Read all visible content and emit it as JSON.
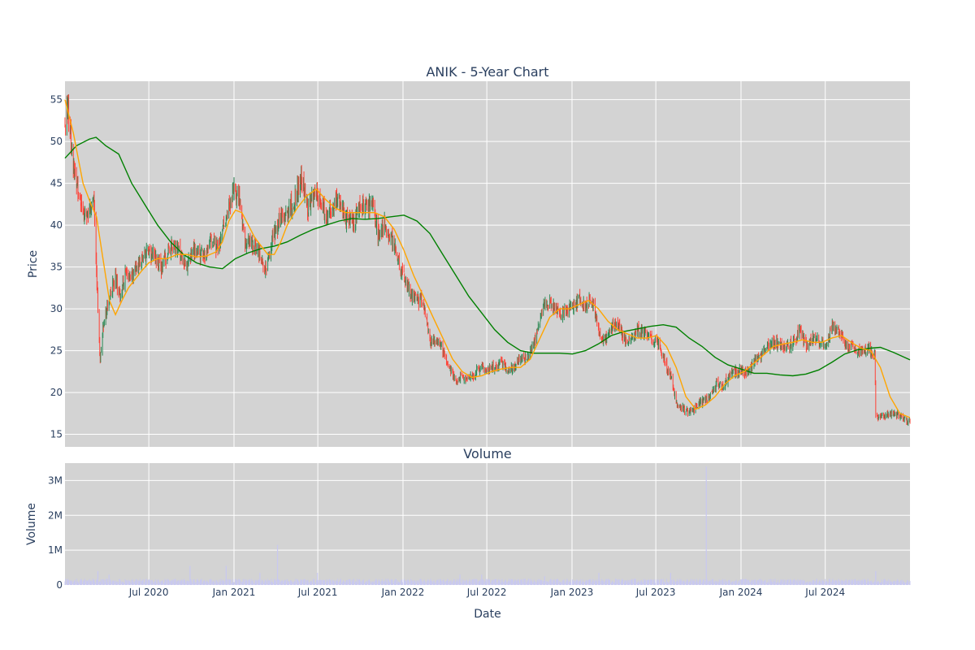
{
  "chart_data": {
    "type": "candlestick",
    "title": "ANIK - 5-Year Chart",
    "colors": {
      "plot_bg": "#d3d3d3",
      "gridline": "#ffffff",
      "increasing": "#2e8b57",
      "decreasing": "#ff4136",
      "ma_short": "#ffa500",
      "ma_long": "#008000",
      "volume_bar": "#c8c8f0"
    },
    "price_panel": {
      "ylabel": "Price",
      "ylim": [
        13.5,
        57.2
      ],
      "yticks": [
        15,
        20,
        25,
        30,
        35,
        40,
        45,
        50,
        55
      ],
      "series": [
        {
          "name": "",
          "color": "ma_short"
        },
        {
          "name": "",
          "color": "ma_long"
        }
      ]
    },
    "volume_panel": {
      "title": "Volume",
      "ylabel": "Volume",
      "ylim": [
        0,
        3500000
      ],
      "yticks": [
        0,
        1000000,
        2000000,
        3000000
      ],
      "ytick_labels": [
        "0",
        "1M",
        "2M",
        "3M"
      ]
    },
    "xaxis": {
      "xlabel": "Date",
      "range": [
        "2020-01-02",
        "2024-12-31"
      ],
      "ticks": [
        "2020-07-01",
        "2021-01-01",
        "2021-07-01",
        "2022-01-01",
        "2022-07-01",
        "2023-01-01",
        "2023-07-01",
        "2024-01-01",
        "2024-07-01"
      ],
      "tick_labels": [
        "Jul 2020",
        "Jan 2021",
        "Jul 2021",
        "Jan 2022",
        "Jul 2022",
        "Jan 2023",
        "Jul 2023",
        "Jan 2024",
        "Jul 2024"
      ]
    },
    "close_path": [
      [
        "2020-01-02",
        52.5
      ],
      [
        "2020-01-08",
        54.5
      ],
      [
        "2020-01-20",
        47
      ],
      [
        "2020-02-03",
        43
      ],
      [
        "2020-02-13",
        41
      ],
      [
        "2020-02-27",
        42
      ],
      [
        "2020-03-05",
        43
      ],
      [
        "2020-03-13",
        30
      ],
      [
        "2020-03-18",
        24
      ],
      [
        "2020-03-24",
        28
      ],
      [
        "2020-04-06",
        31
      ],
      [
        "2020-04-20",
        34
      ],
      [
        "2020-04-29",
        31.5
      ],
      [
        "2020-05-11",
        34
      ],
      [
        "2020-05-25",
        34
      ],
      [
        "2020-06-08",
        35
      ],
      [
        "2020-06-29",
        37
      ],
      [
        "2020-07-13",
        36
      ],
      [
        "2020-07-29",
        35
      ],
      [
        "2020-08-12",
        37
      ],
      [
        "2020-09-01",
        37.5
      ],
      [
        "2020-09-21",
        35
      ],
      [
        "2020-10-05",
        37
      ],
      [
        "2020-10-28",
        36
      ],
      [
        "2020-11-13",
        38
      ],
      [
        "2020-11-30",
        37.5
      ],
      [
        "2020-12-15",
        41
      ],
      [
        "2020-12-31",
        44
      ],
      [
        "2021-01-11",
        43.5
      ],
      [
        "2021-01-25",
        38
      ],
      [
        "2021-02-08",
        38
      ],
      [
        "2021-02-25",
        36.5
      ],
      [
        "2021-03-11",
        35
      ],
      [
        "2021-03-25",
        38
      ],
      [
        "2021-04-12",
        41
      ],
      [
        "2021-04-28",
        41.5
      ],
      [
        "2021-05-12",
        43
      ],
      [
        "2021-05-26",
        46
      ],
      [
        "2021-06-09",
        42
      ],
      [
        "2021-06-23",
        44
      ],
      [
        "2021-07-06",
        43
      ],
      [
        "2021-07-20",
        41
      ],
      [
        "2021-08-02",
        42
      ],
      [
        "2021-08-16",
        43
      ],
      [
        "2021-08-30",
        41
      ],
      [
        "2021-09-14",
        40
      ],
      [
        "2021-09-28",
        42
      ],
      [
        "2021-10-12",
        42
      ],
      [
        "2021-10-27",
        42.5
      ],
      [
        "2021-11-08",
        39
      ],
      [
        "2021-11-22",
        40
      ],
      [
        "2021-12-06",
        38.5
      ],
      [
        "2021-12-20",
        36
      ],
      [
        "2022-01-03",
        34
      ],
      [
        "2022-01-17",
        32
      ],
      [
        "2022-01-31",
        31
      ],
      [
        "2022-02-14",
        31
      ],
      [
        "2022-02-28",
        26
      ],
      [
        "2022-03-14",
        26.5
      ],
      [
        "2022-03-28",
        25
      ],
      [
        "2022-04-11",
        23
      ],
      [
        "2022-04-25",
        21.5
      ],
      [
        "2022-05-09",
        22
      ],
      [
        "2022-05-23",
        21.5
      ],
      [
        "2022-06-06",
        22.5
      ],
      [
        "2022-06-21",
        23
      ],
      [
        "2022-07-05",
        22.5
      ],
      [
        "2022-07-19",
        23
      ],
      [
        "2022-08-02",
        23.5
      ],
      [
        "2022-08-16",
        22.5
      ],
      [
        "2022-08-30",
        23
      ],
      [
        "2022-09-13",
        24
      ],
      [
        "2022-09-27",
        24
      ],
      [
        "2022-10-11",
        26
      ],
      [
        "2022-10-25",
        29
      ],
      [
        "2022-11-08",
        31
      ],
      [
        "2022-11-22",
        30.5
      ],
      [
        "2022-12-06",
        29
      ],
      [
        "2022-12-20",
        30
      ],
      [
        "2023-01-03",
        30.5
      ],
      [
        "2023-01-17",
        31
      ],
      [
        "2023-01-31",
        30.5
      ],
      [
        "2023-02-14",
        31
      ],
      [
        "2023-02-28",
        27
      ],
      [
        "2023-03-14",
        26.5
      ],
      [
        "2023-03-28",
        28
      ],
      [
        "2023-04-11",
        28
      ],
      [
        "2023-04-25",
        26.5
      ],
      [
        "2023-05-09",
        26
      ],
      [
        "2023-05-23",
        27.5
      ],
      [
        "2023-06-06",
        27
      ],
      [
        "2023-06-20",
        26.5
      ],
      [
        "2023-07-05",
        26
      ],
      [
        "2023-07-19",
        24
      ],
      [
        "2023-08-02",
        22
      ],
      [
        "2023-08-16",
        18.5
      ],
      [
        "2023-08-30",
        18
      ],
      [
        "2023-09-13",
        17.5
      ],
      [
        "2023-09-27",
        18.5
      ],
      [
        "2023-10-11",
        19
      ],
      [
        "2023-10-25",
        19.5
      ],
      [
        "2023-11-08",
        21
      ],
      [
        "2023-11-22",
        20.5
      ],
      [
        "2023-12-06",
        22
      ],
      [
        "2023-12-20",
        22.5
      ],
      [
        "2024-01-03",
        22.5
      ],
      [
        "2024-01-17",
        22.5
      ],
      [
        "2024-01-31",
        24
      ],
      [
        "2024-02-14",
        24.5
      ],
      [
        "2024-02-28",
        25.5
      ],
      [
        "2024-03-13",
        26
      ],
      [
        "2024-03-27",
        25.5
      ],
      [
        "2024-04-10",
        25.5
      ],
      [
        "2024-04-24",
        26
      ],
      [
        "2024-05-08",
        27.5
      ],
      [
        "2024-05-22",
        25.5
      ],
      [
        "2024-06-05",
        26.5
      ],
      [
        "2024-06-19",
        26
      ],
      [
        "2024-07-03",
        26
      ],
      [
        "2024-07-17",
        28
      ],
      [
        "2024-07-31",
        27
      ],
      [
        "2024-08-14",
        25.5
      ],
      [
        "2024-08-28",
        25.5
      ],
      [
        "2024-09-11",
        25
      ],
      [
        "2024-09-25",
        25
      ],
      [
        "2024-10-09",
        25
      ],
      [
        "2024-10-16",
        24.5
      ],
      [
        "2024-10-18",
        17
      ],
      [
        "2024-10-31",
        17
      ],
      [
        "2024-11-14",
        17.5
      ],
      [
        "2024-11-28",
        17.5
      ],
      [
        "2024-12-12",
        17
      ],
      [
        "2024-12-31",
        16.5
      ]
    ],
    "ma_short_path": [
      [
        "2020-01-02",
        55
      ],
      [
        "2020-01-20",
        51
      ],
      [
        "2020-02-10",
        45
      ],
      [
        "2020-02-27",
        42.5
      ],
      [
        "2020-03-10",
        41
      ],
      [
        "2020-03-24",
        36
      ],
      [
        "2020-04-07",
        31
      ],
      [
        "2020-04-20",
        29.3
      ],
      [
        "2020-05-04",
        31
      ],
      [
        "2020-05-18",
        32.5
      ],
      [
        "2020-06-01",
        33.5
      ],
      [
        "2020-06-15",
        34.5
      ],
      [
        "2020-07-01",
        35.5
      ],
      [
        "2020-07-20",
        36
      ],
      [
        "2020-08-10",
        36
      ],
      [
        "2020-08-31",
        36.5
      ],
      [
        "2020-09-21",
        36.5
      ],
      [
        "2020-10-12",
        36.2
      ],
      [
        "2020-11-02",
        36.3
      ],
      [
        "2020-11-23",
        36.8
      ],
      [
        "2020-12-07",
        38
      ],
      [
        "2020-12-21",
        40.5
      ],
      [
        "2021-01-04",
        41.8
      ],
      [
        "2021-01-18",
        41.5
      ],
      [
        "2021-02-01",
        40
      ],
      [
        "2021-02-15",
        38.5
      ],
      [
        "2021-03-01",
        37.5
      ],
      [
        "2021-03-15",
        36.5
      ],
      [
        "2021-03-29",
        36.5
      ],
      [
        "2021-04-12",
        38
      ],
      [
        "2021-04-26",
        40
      ],
      [
        "2021-05-17",
        42
      ],
      [
        "2021-06-07",
        43.5
      ],
      [
        "2021-06-28",
        44.3
      ],
      [
        "2021-07-19",
        43
      ],
      [
        "2021-08-09",
        42
      ],
      [
        "2021-08-30",
        41.5
      ],
      [
        "2021-09-20",
        41.5
      ],
      [
        "2021-10-11",
        41.5
      ],
      [
        "2021-11-01",
        41.5
      ],
      [
        "2021-11-22",
        41
      ],
      [
        "2021-12-13",
        39.5
      ],
      [
        "2022-01-03",
        37
      ],
      [
        "2022-01-24",
        34
      ],
      [
        "2022-02-14",
        31.5
      ],
      [
        "2022-03-07",
        29
      ],
      [
        "2022-03-28",
        26.5
      ],
      [
        "2022-04-18",
        24
      ],
      [
        "2022-05-09",
        22.5
      ],
      [
        "2022-05-30",
        21.8
      ],
      [
        "2022-06-20",
        22
      ],
      [
        "2022-07-11",
        22.5
      ],
      [
        "2022-08-01",
        22.8
      ],
      [
        "2022-08-22",
        23
      ],
      [
        "2022-09-12",
        23
      ],
      [
        "2022-10-03",
        24
      ],
      [
        "2022-10-24",
        26.5
      ],
      [
        "2022-11-14",
        29
      ],
      [
        "2022-12-05",
        30
      ],
      [
        "2022-12-26",
        30
      ],
      [
        "2023-01-16",
        30.5
      ],
      [
        "2023-02-06",
        31
      ],
      [
        "2023-02-27",
        30
      ],
      [
        "2023-03-20",
        28.5
      ],
      [
        "2023-04-10",
        27.5
      ],
      [
        "2023-05-01",
        27
      ],
      [
        "2023-05-22",
        26.5
      ],
      [
        "2023-06-12",
        26.5
      ],
      [
        "2023-07-03",
        26.8
      ],
      [
        "2023-07-24",
        25.5
      ],
      [
        "2023-08-14",
        23
      ],
      [
        "2023-09-04",
        19.5
      ],
      [
        "2023-09-25",
        18
      ],
      [
        "2023-10-16",
        18.5
      ],
      [
        "2023-11-06",
        19.5
      ],
      [
        "2023-11-27",
        21
      ],
      [
        "2023-12-18",
        22
      ],
      [
        "2024-01-08",
        22.5
      ],
      [
        "2024-01-29",
        23.5
      ],
      [
        "2024-02-19",
        24.5
      ],
      [
        "2024-03-11",
        25.5
      ],
      [
        "2024-04-01",
        25.8
      ],
      [
        "2024-04-22",
        26
      ],
      [
        "2024-05-13",
        26.3
      ],
      [
        "2024-06-03",
        26
      ],
      [
        "2024-06-24",
        26
      ],
      [
        "2024-07-15",
        26.5
      ],
      [
        "2024-08-05",
        26.8
      ],
      [
        "2024-08-26",
        26
      ],
      [
        "2024-09-16",
        25.3
      ],
      [
        "2024-10-07",
        25
      ],
      [
        "2024-10-28",
        23
      ],
      [
        "2024-11-18",
        19.5
      ],
      [
        "2024-12-09",
        17.5
      ],
      [
        "2024-12-31",
        17
      ]
    ],
    "ma_long_path": [
      [
        "2020-01-02",
        48
      ],
      [
        "2020-01-27",
        49.5
      ],
      [
        "2020-02-24",
        50.3
      ],
      [
        "2020-03-09",
        50.5
      ],
      [
        "2020-03-30",
        49.5
      ],
      [
        "2020-04-27",
        48.5
      ],
      [
        "2020-05-25",
        45
      ],
      [
        "2020-06-22",
        42.5
      ],
      [
        "2020-07-20",
        40
      ],
      [
        "2020-08-17",
        38
      ],
      [
        "2020-09-14",
        36.5
      ],
      [
        "2020-10-12",
        35.5
      ],
      [
        "2020-11-09",
        35
      ],
      [
        "2020-12-07",
        34.8
      ],
      [
        "2021-01-04",
        36
      ],
      [
        "2021-02-01",
        36.7
      ],
      [
        "2021-03-01",
        37.2
      ],
      [
        "2021-03-29",
        37.5
      ],
      [
        "2021-04-26",
        38
      ],
      [
        "2021-05-24",
        38.8
      ],
      [
        "2021-06-21",
        39.5
      ],
      [
        "2021-07-19",
        40
      ],
      [
        "2021-08-16",
        40.5
      ],
      [
        "2021-09-13",
        40.8
      ],
      [
        "2021-10-11",
        40.7
      ],
      [
        "2021-11-08",
        40.8
      ],
      [
        "2021-12-06",
        41
      ],
      [
        "2022-01-03",
        41.2
      ],
      [
        "2022-01-31",
        40.5
      ],
      [
        "2022-02-28",
        39
      ],
      [
        "2022-03-28",
        36.5
      ],
      [
        "2022-04-25",
        34
      ],
      [
        "2022-05-23",
        31.5
      ],
      [
        "2022-06-20",
        29.5
      ],
      [
        "2022-07-18",
        27.5
      ],
      [
        "2022-08-15",
        26
      ],
      [
        "2022-09-12",
        25
      ],
      [
        "2022-10-10",
        24.7
      ],
      [
        "2022-11-07",
        24.7
      ],
      [
        "2022-12-05",
        24.7
      ],
      [
        "2023-01-02",
        24.6
      ],
      [
        "2023-01-30",
        25
      ],
      [
        "2023-02-27",
        25.8
      ],
      [
        "2023-03-27",
        26.8
      ],
      [
        "2023-04-24",
        27.3
      ],
      [
        "2023-05-22",
        27.6
      ],
      [
        "2023-06-19",
        27.9
      ],
      [
        "2023-07-17",
        28.1
      ],
      [
        "2023-08-14",
        27.8
      ],
      [
        "2023-09-11",
        26.5
      ],
      [
        "2023-10-09",
        25.5
      ],
      [
        "2023-11-06",
        24.2
      ],
      [
        "2023-12-04",
        23.3
      ],
      [
        "2024-01-01",
        22.8
      ],
      [
        "2024-01-29",
        22.3
      ],
      [
        "2024-02-26",
        22.3
      ],
      [
        "2024-03-25",
        22.1
      ],
      [
        "2024-04-22",
        22
      ],
      [
        "2024-05-20",
        22.2
      ],
      [
        "2024-06-17",
        22.7
      ],
      [
        "2024-07-15",
        23.6
      ],
      [
        "2024-08-12",
        24.6
      ],
      [
        "2024-09-09",
        25.1
      ],
      [
        "2024-10-07",
        25.3
      ],
      [
        "2024-10-28",
        25.4
      ],
      [
        "2024-11-25",
        24.8
      ],
      [
        "2024-12-31",
        23.9
      ]
    ],
    "volume_spikes": [
      [
        "2020-03-13",
        400000
      ],
      [
        "2020-04-06",
        300000
      ],
      [
        "2020-09-28",
        550000
      ],
      [
        "2020-12-15",
        550000
      ],
      [
        "2021-02-26",
        350000
      ],
      [
        "2021-04-05",
        1150000
      ],
      [
        "2021-06-30",
        350000
      ],
      [
        "2022-05-04",
        300000
      ],
      [
        "2022-06-20",
        300000
      ],
      [
        "2022-11-03",
        250000
      ],
      [
        "2023-02-28",
        350000
      ],
      [
        "2023-08-02",
        350000
      ],
      [
        "2023-10-18",
        3400000
      ],
      [
        "2024-10-18",
        400000
      ]
    ]
  }
}
